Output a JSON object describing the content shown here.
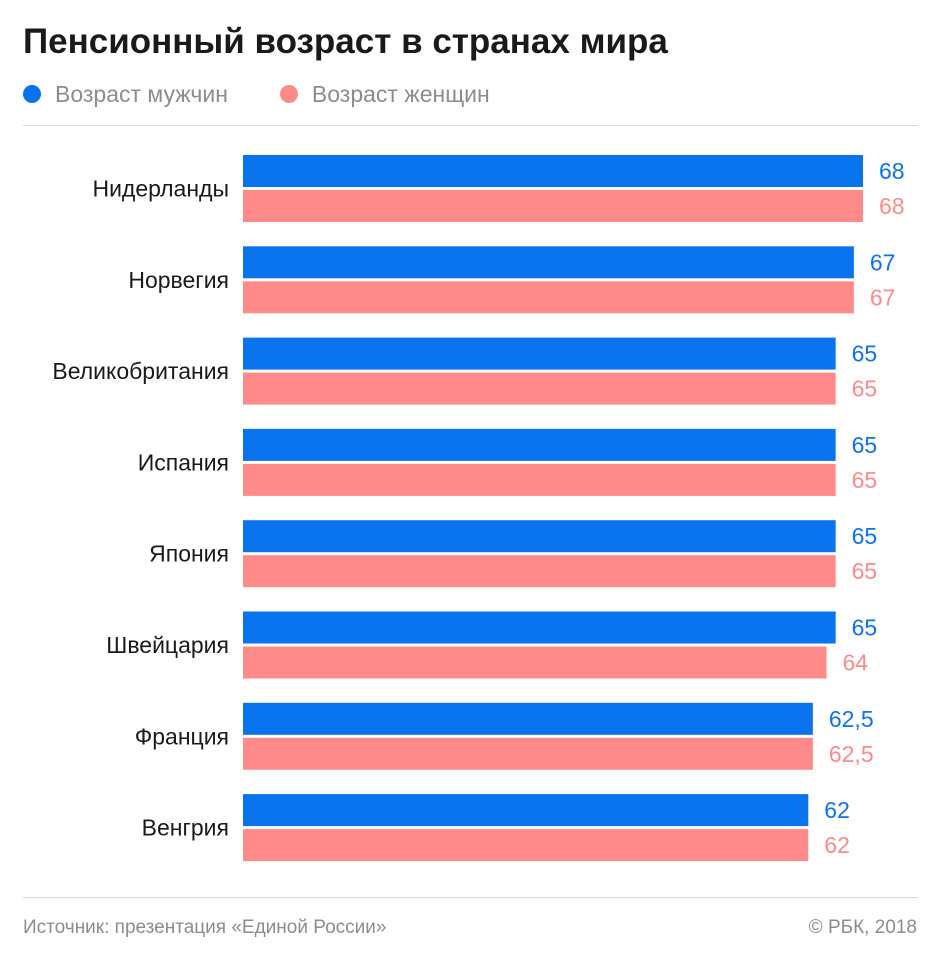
{
  "title": "Пенсионный возраст в странах мира",
  "legend": {
    "male_label": "Возраст мужчин",
    "female_label": "Возраст женщин"
  },
  "colors": {
    "male": "#0a73ee",
    "female": "#ff8a8a",
    "text": "#1a1a1a",
    "muted": "#8c8c8c"
  },
  "footer": {
    "source": "Источник: презентация «Единой России»",
    "copyright": "© РБК, 2018"
  },
  "chart_data": {
    "type": "bar",
    "orientation": "horizontal",
    "categories": [
      "Нидерланды",
      "Норвегия",
      "Великобритания",
      "Испания",
      "Япония",
      "Швейцария",
      "Франция",
      "Венгрия"
    ],
    "series": [
      {
        "name": "Возраст мужчин",
        "values": [
          68,
          67,
          65,
          65,
          65,
          65,
          62.5,
          62
        ],
        "labels": [
          "68",
          "67",
          "65",
          "65",
          "65",
          "65",
          "62,5",
          "62"
        ]
      },
      {
        "name": "Возраст женщин",
        "values": [
          68,
          67,
          65,
          65,
          65,
          64,
          62.5,
          62
        ],
        "labels": [
          "68",
          "67",
          "65",
          "65",
          "65",
          "64",
          "62,5",
          "62"
        ]
      }
    ],
    "title": "Пенсионный возраст в странах мира",
    "xlabel": "",
    "ylabel": "",
    "xlim": [
      0,
      68
    ],
    "grid": false,
    "legend_position": "top-left"
  }
}
